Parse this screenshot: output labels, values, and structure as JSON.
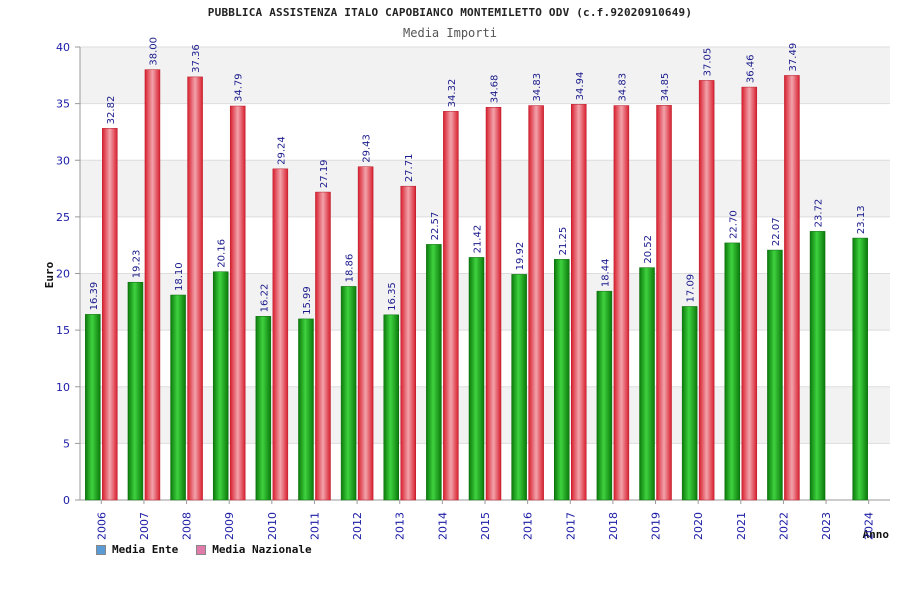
{
  "chart_data": {
    "type": "bar",
    "title": "PUBBLICA ASSISTENZA ITALO CAPOBIANCO MONTEMILETTO ODV (c.f.92020910649)",
    "subtitle": "Media Importi",
    "xlabel": "Anno",
    "ylabel": "Euro",
    "ylim": [
      0,
      40
    ],
    "yticks": [
      0,
      5,
      10,
      15,
      20,
      25,
      30,
      35,
      40
    ],
    "grid": true,
    "legend_placement": "bottom-left",
    "categories": [
      "2006",
      "2007",
      "2008",
      "2009",
      "2010",
      "2011",
      "2012",
      "2013",
      "2014",
      "2015",
      "2016",
      "2017",
      "2018",
      "2019",
      "2020",
      "2021",
      "2022",
      "2023",
      "2024"
    ],
    "series": [
      {
        "name": "Media Ente",
        "legend_color": "#5b9bd5",
        "bar_color": "#1aa51a",
        "values": [
          16.39,
          19.23,
          18.1,
          20.16,
          16.22,
          15.99,
          18.86,
          16.35,
          22.57,
          21.42,
          19.92,
          21.25,
          18.44,
          20.52,
          17.09,
          22.7,
          22.07,
          23.72,
          23.13
        ],
        "labels": [
          "16.39",
          "19.23",
          "18.10",
          "20.16",
          "16.22",
          "15.99",
          "18.86",
          "16.35",
          "22.57",
          "21.42",
          "19.92",
          "21.25",
          "18.44",
          "20.52",
          "17.09",
          "22.70",
          "22.07",
          "23.72",
          "23.13"
        ]
      },
      {
        "name": "Media Nazionale",
        "legend_color": "#e07aa8",
        "bar_color": "#e8283a",
        "values": [
          32.82,
          38.0,
          37.36,
          34.79,
          29.24,
          27.19,
          29.43,
          27.71,
          34.32,
          34.68,
          34.83,
          34.94,
          34.83,
          34.85,
          37.05,
          36.46,
          37.49,
          null,
          null
        ],
        "labels": [
          "32.82",
          "38.00",
          "37.36",
          "34.79",
          "29.24",
          "27.19",
          "29.43",
          "27.71",
          "34.32",
          "34.68",
          "34.83",
          "34.94",
          "34.83",
          "34.85",
          "37.05",
          "36.46",
          "37.49",
          "",
          ""
        ]
      }
    ]
  }
}
